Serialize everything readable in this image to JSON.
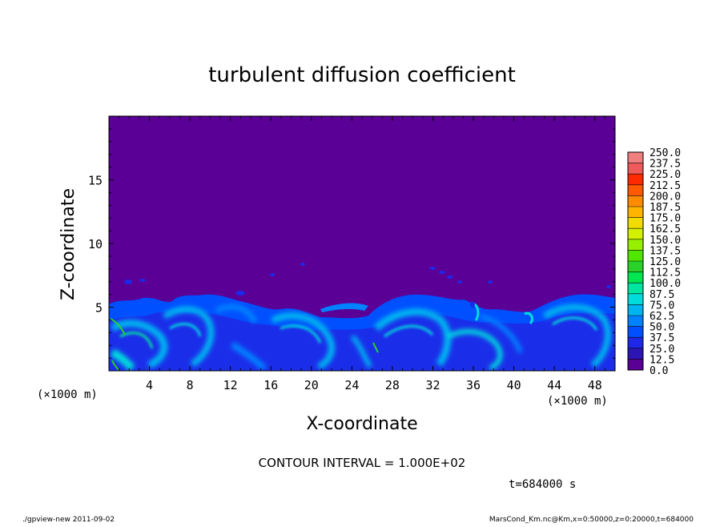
{
  "chart_data": {
    "type": "heatmap",
    "title": "turbulent diffusion coefficient",
    "xlabel": "X-coordinate",
    "ylabel": "Z-coordinate",
    "x_unit_note": "(×1000 m)",
    "y_unit_note": "(×1000 m)",
    "xlim": [
      0,
      50
    ],
    "ylim": [
      0,
      20
    ],
    "x_ticks": [
      "4",
      "8",
      "12",
      "16",
      "20",
      "24",
      "28",
      "32",
      "36",
      "40",
      "44",
      "48"
    ],
    "y_ticks": [
      "5",
      "10",
      "15"
    ],
    "contour_interval": "CONTOUR INTERVAL = 1.000E+02",
    "time_label": "t=684000 s",
    "colorbar": {
      "labels": [
        "250.0",
        "237.5",
        "225.0",
        "212.5",
        "200.0",
        "187.5",
        "175.0",
        "162.5",
        "150.0",
        "137.5",
        "125.0",
        "112.5",
        "100.0",
        "87.5",
        "75.0",
        "62.5",
        "50.0",
        "37.5",
        "25.0",
        "12.5",
        "0.0"
      ],
      "colors": [
        "#f08080",
        "#f05a5a",
        "#ff2a00",
        "#ff5a00",
        "#ff8c00",
        "#ffb400",
        "#f0dc00",
        "#d2f000",
        "#96f000",
        "#50e600",
        "#28d228",
        "#00e650",
        "#00e6a0",
        "#00dcdc",
        "#00b4f0",
        "#0082ff",
        "#0050ff",
        "#1e28e6",
        "#2d14b4",
        "#5a0096"
      ]
    },
    "field_description_values": {
      "background_value": 0.0,
      "boundary_layer_top_km_approx": 6
    }
  },
  "footer": {
    "left": "./gpview-new  2011-09-02",
    "right": "MarsCond_Km.nc@Km,x=0:50000,z=0:20000,t=684000"
  }
}
